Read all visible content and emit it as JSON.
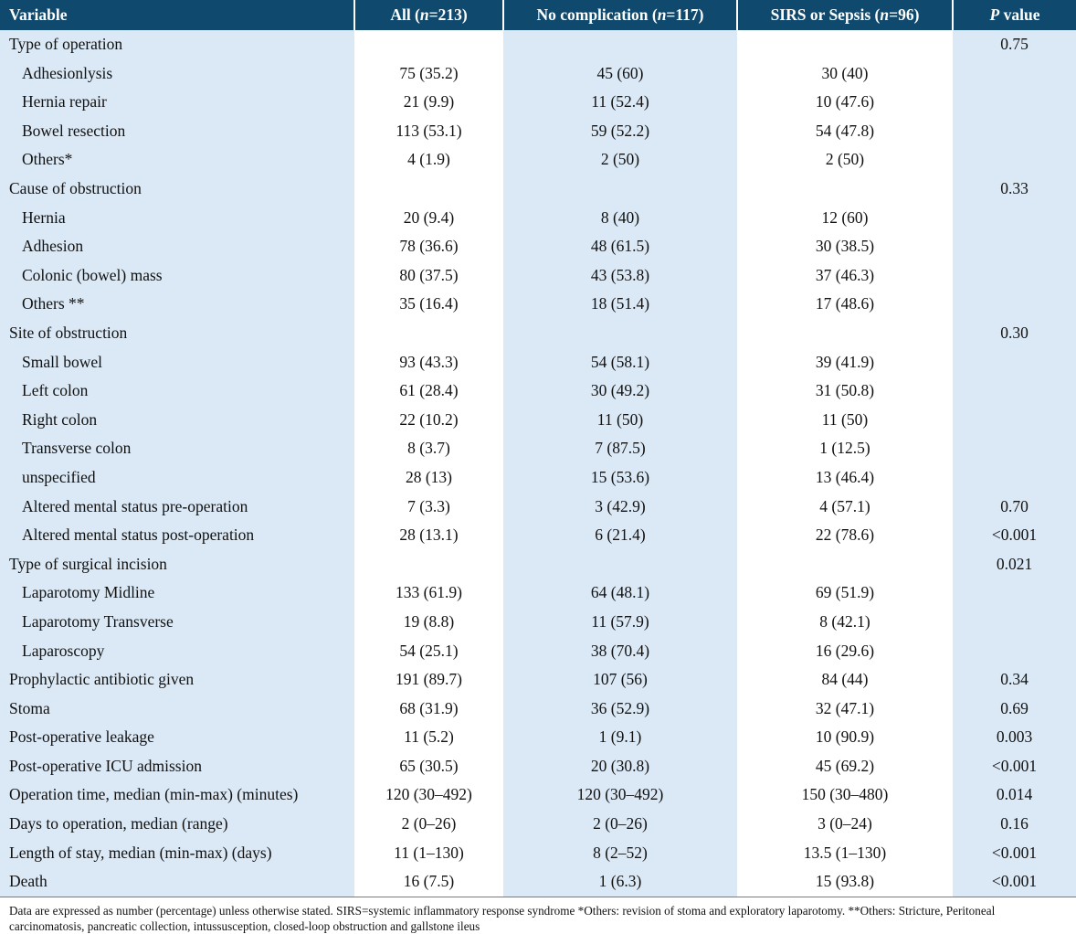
{
  "table": {
    "headers": [
      {
        "pre": "Variable",
        "ital": "",
        "post": ""
      },
      {
        "pre": "All (",
        "ital": "n",
        "post": "=213)"
      },
      {
        "pre": "No complication (",
        "ital": "n",
        "post": "=117)"
      },
      {
        "pre": "SIRS or Sepsis (",
        "ital": "n",
        "post": "=96)"
      },
      {
        "pre": "",
        "ital": "P",
        "post": " value"
      }
    ],
    "rows": [
      {
        "label": "Type of operation",
        "indent": false,
        "all": "",
        "no_comp": "",
        "sirs": "",
        "p": "0.75"
      },
      {
        "label": "Adhesionlysis",
        "indent": true,
        "all": "75 (35.2)",
        "no_comp": "45 (60)",
        "sirs": "30 (40)",
        "p": ""
      },
      {
        "label": "Hernia repair",
        "indent": true,
        "all": "21 (9.9)",
        "no_comp": "11 (52.4)",
        "sirs": "10 (47.6)",
        "p": ""
      },
      {
        "label": "Bowel resection",
        "indent": true,
        "all": "113 (53.1)",
        "no_comp": "59 (52.2)",
        "sirs": "54 (47.8)",
        "p": ""
      },
      {
        "label": "Others*",
        "indent": true,
        "all": "4 (1.9)",
        "no_comp": "2 (50)",
        "sirs": "2 (50)",
        "p": ""
      },
      {
        "label": "Cause of obstruction",
        "indent": false,
        "all": "",
        "no_comp": "",
        "sirs": "",
        "p": "0.33"
      },
      {
        "label": "Hernia",
        "indent": true,
        "all": "20 (9.4)",
        "no_comp": "8 (40)",
        "sirs": "12 (60)",
        "p": ""
      },
      {
        "label": "Adhesion",
        "indent": true,
        "all": "78 (36.6)",
        "no_comp": "48 (61.5)",
        "sirs": "30 (38.5)",
        "p": ""
      },
      {
        "label": "Colonic (bowel) mass",
        "indent": true,
        "all": "80 (37.5)",
        "no_comp": "43 (53.8)",
        "sirs": "37 (46.3)",
        "p": ""
      },
      {
        "label": "Others **",
        "indent": true,
        "all": "35 (16.4)",
        "no_comp": "18 (51.4)",
        "sirs": "17 (48.6)",
        "p": ""
      },
      {
        "label": "Site of obstruction",
        "indent": false,
        "all": "",
        "no_comp": "",
        "sirs": "",
        "p": "0.30"
      },
      {
        "label": "Small bowel",
        "indent": true,
        "all": "93 (43.3)",
        "no_comp": "54 (58.1)",
        "sirs": "39 (41.9)",
        "p": ""
      },
      {
        "label": "Left colon",
        "indent": true,
        "all": "61 (28.4)",
        "no_comp": "30 (49.2)",
        "sirs": "31 (50.8)",
        "p": ""
      },
      {
        "label": "Right colon",
        "indent": true,
        "all": "22 (10.2)",
        "no_comp": "11 (50)",
        "sirs": "11 (50)",
        "p": ""
      },
      {
        "label": "Transverse colon",
        "indent": true,
        "all": "8 (3.7)",
        "no_comp": "7 (87.5)",
        "sirs": "1 (12.5)",
        "p": ""
      },
      {
        "label": "unspecified",
        "indent": true,
        "all": "28 (13)",
        "no_comp": "15 (53.6)",
        "sirs": "13 (46.4)",
        "p": ""
      },
      {
        "label": "Altered mental status pre-operation",
        "indent": true,
        "all": "7 (3.3)",
        "no_comp": "3 (42.9)",
        "sirs": "4 (57.1)",
        "p": "0.70"
      },
      {
        "label": "Altered mental status post-operation",
        "indent": true,
        "all": "28 (13.1)",
        "no_comp": "6 (21.4)",
        "sirs": "22 (78.6)",
        "p": "<0.001"
      },
      {
        "label": "Type of surgical incision",
        "indent": false,
        "all": "",
        "no_comp": "",
        "sirs": "",
        "p": "0.021"
      },
      {
        "label": "Laparotomy Midline",
        "indent": true,
        "all": "133 (61.9)",
        "no_comp": "64 (48.1)",
        "sirs": "69 (51.9)",
        "p": ""
      },
      {
        "label": "Laparotomy Transverse",
        "indent": true,
        "all": "19 (8.8)",
        "no_comp": "11 (57.9)",
        "sirs": "8 (42.1)",
        "p": ""
      },
      {
        "label": "Laparoscopy",
        "indent": true,
        "all": "54 (25.1)",
        "no_comp": "38 (70.4)",
        "sirs": "16 (29.6)",
        "p": ""
      },
      {
        "label": "Prophylactic antibiotic given",
        "indent": false,
        "all": "191 (89.7)",
        "no_comp": "107 (56)",
        "sirs": "84 (44)",
        "p": "0.34"
      },
      {
        "label": "Stoma",
        "indent": false,
        "all": "68 (31.9)",
        "no_comp": "36 (52.9)",
        "sirs": "32 (47.1)",
        "p": "0.69"
      },
      {
        "label": "Post-operative leakage",
        "indent": false,
        "all": "11 (5.2)",
        "no_comp": "1 (9.1)",
        "sirs": "10 (90.9)",
        "p": "0.003"
      },
      {
        "label": "Post-operative ICU admission",
        "indent": false,
        "all": "65 (30.5)",
        "no_comp": "20 (30.8)",
        "sirs": "45 (69.2)",
        "p": "<0.001"
      },
      {
        "label": "Operation time, median (min-max) (minutes)",
        "indent": false,
        "all": "120 (30–492)",
        "no_comp": "120 (30–492)",
        "sirs": "150 (30–480)",
        "p": "0.014"
      },
      {
        "label": "Days to operation, median (range)",
        "indent": false,
        "all": "2 (0–26)",
        "no_comp": "2 (0–26)",
        "sirs": "3 (0–24)",
        "p": "0.16"
      },
      {
        "label": "Length of stay, median (min-max) (days)",
        "indent": false,
        "all": "11 (1–130)",
        "no_comp": "8 (2–52)",
        "sirs": "13.5 (1–130)",
        "p": "<0.001"
      },
      {
        "label": "Death",
        "indent": false,
        "all": "16 (7.5)",
        "no_comp": "1 (6.3)",
        "sirs": "15 (93.8)",
        "p": "<0.001"
      }
    ]
  },
  "footnote": "Data are expressed as number (percentage) unless otherwise stated. SIRS=systemic inflammatory response syndrome *Others: revision of stoma and exploratory laparotomy. **Others: Stricture, Peritoneal carcinomatosis, pancreatic collection, intussusception, closed-loop obstruction and gallstone ileus",
  "colors": {
    "header_bg": "#0f4a6e",
    "shaded_column": "#dbe9f6",
    "header_text": "#ffffff"
  }
}
